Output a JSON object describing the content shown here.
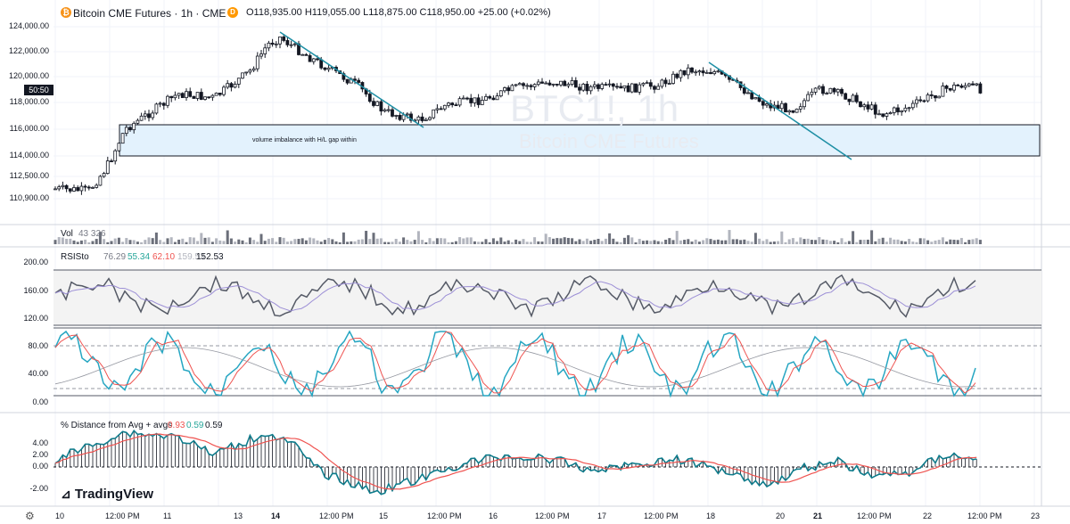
{
  "header": {
    "symbol_title": "Bitcoin CME Futures · 1h · CME",
    "symbol_icon": "bitcoin-icon",
    "badge": "D",
    "ohlc": "O118,935.00  H119,055.00  L118,875.00  C118,950.00  +25.00 (+0.02%)"
  },
  "watermark": {
    "symbol": "BTC1!, 1h",
    "name": "Bitcoin CME Futures"
  },
  "last_price_tag": "50:50",
  "annotation_text": "volume imbalance with H/L gap within",
  "volume": {
    "label": "Vol",
    "value": "43  326"
  },
  "rsisto": {
    "label": "RSISto",
    "v1": "76.29",
    "v2": "55.34",
    "v3": "62.10",
    "v4": "159.53",
    "v5": "152.53",
    "colors": {
      "v1": "#787b86",
      "v2": "#26a69a",
      "v3": "#ef5350",
      "v4": "#b2b5be"
    }
  },
  "dist": {
    "label": "% Distance from Avg + avgs",
    "v1": "0.93",
    "v2": "0.59",
    "v3": "0.59"
  },
  "price_ticks": [
    "124,000.00",
    "122,000.00",
    "120,000.00",
    "118,000.00",
    "116,000.00",
    "114,000.00",
    "112,500.00",
    "110,900.00"
  ],
  "rsi_ticks": [
    "200.00",
    "160.00",
    "120.00"
  ],
  "sto_ticks": [
    "80.00",
    "40.00",
    "0.00"
  ],
  "dist_ticks": [
    "4.00",
    "2.00",
    "0.00",
    "-2.00"
  ],
  "time_ticks": [
    "10",
    "12:00 PM",
    "11",
    "13",
    "14",
    "12:00 PM",
    "15",
    "12:00 PM",
    "16",
    "12:00 PM",
    "17",
    "12:00 PM",
    "18",
    "20",
    "21",
    "12:00 PM",
    "22",
    "12:00 PM",
    "23"
  ],
  "logo_text": "TradingView",
  "colors": {
    "up": "#ffffff",
    "down": "#131722",
    "trend": "#1e8fa5",
    "sto_k": "#26a6c2",
    "sto_d": "#ef5350",
    "rsi": "#555a66"
  }
}
